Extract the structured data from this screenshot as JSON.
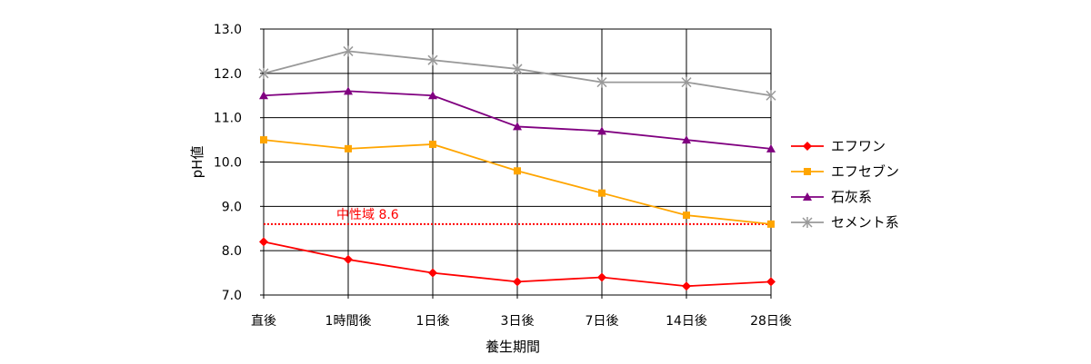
{
  "chart_data": {
    "type": "line",
    "xlabel": "養生期間",
    "ylabel": "pH値",
    "categories": [
      "直後",
      "1時間後",
      "1日後",
      "3日後",
      "7日後",
      "14日後",
      "28日後"
    ],
    "ylim": [
      7.0,
      13.0
    ],
    "yticks": [
      "7.0",
      "8.0",
      "9.0",
      "10.0",
      "11.0",
      "12.0",
      "13.0"
    ],
    "grid": true,
    "legend_position": "right",
    "series": [
      {
        "name": "エフワン",
        "color": "#ff0000",
        "marker": "diamond",
        "values": [
          8.2,
          7.8,
          7.5,
          7.3,
          7.4,
          7.2,
          7.3
        ]
      },
      {
        "name": "エフセブン",
        "color": "#ffa500",
        "marker": "square",
        "values": [
          10.5,
          10.3,
          10.4,
          9.8,
          9.3,
          8.8,
          8.6
        ]
      },
      {
        "name": "石灰系",
        "color": "#800080",
        "marker": "triangle",
        "values": [
          11.5,
          11.6,
          11.5,
          10.8,
          10.7,
          10.5,
          10.3
        ]
      },
      {
        "name": "セメント系",
        "color": "#999999",
        "marker": "star",
        "values": [
          12.0,
          12.5,
          12.3,
          12.1,
          11.8,
          11.8,
          11.5
        ]
      }
    ],
    "reference_line": {
      "label": "中性域 8.6",
      "value": 8.6,
      "color": "#ff0000",
      "style": "dotted"
    }
  }
}
